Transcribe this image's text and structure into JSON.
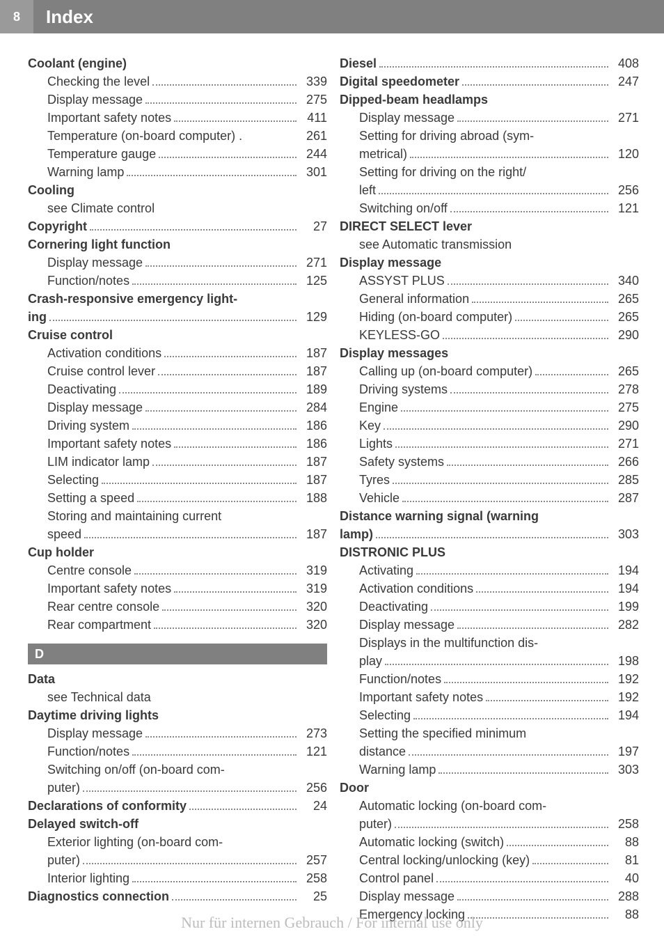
{
  "header": {
    "page_num": "8",
    "title": "Index"
  },
  "left": [
    {
      "t": "h",
      "text": "Coolant (engine)"
    },
    {
      "t": "i",
      "text": "Checking the level",
      "pg": "339"
    },
    {
      "t": "i",
      "text": "Display message",
      "pg": "275"
    },
    {
      "t": "i",
      "text": "Important safety notes",
      "pg": "411"
    },
    {
      "t": "i",
      "text": "Temperature (on-board computer) .",
      "pg": "261",
      "nodots": true
    },
    {
      "t": "i",
      "text": "Temperature gauge",
      "pg": "244"
    },
    {
      "t": "i",
      "text": "Warning lamp",
      "pg": "301"
    },
    {
      "t": "h",
      "text": "Cooling"
    },
    {
      "t": "p",
      "text": "see Climate control"
    },
    {
      "t": "b",
      "text": "Copyright",
      "pg": "27"
    },
    {
      "t": "h",
      "text": "Cornering light function"
    },
    {
      "t": "i",
      "text": "Display message",
      "pg": "271"
    },
    {
      "t": "i",
      "text": "Function/notes",
      "pg": "125"
    },
    {
      "t": "h",
      "text": "Crash-responsive emergency light-"
    },
    {
      "t": "b",
      "text": "ing",
      "pg": "129"
    },
    {
      "t": "h",
      "text": "Cruise control"
    },
    {
      "t": "i",
      "text": "Activation conditions",
      "pg": "187"
    },
    {
      "t": "i",
      "text": "Cruise control lever",
      "pg": "187"
    },
    {
      "t": "i",
      "text": "Deactivating",
      "pg": "189"
    },
    {
      "t": "i",
      "text": "Display message",
      "pg": "284"
    },
    {
      "t": "i",
      "text": "Driving system",
      "pg": "186"
    },
    {
      "t": "i",
      "text": "Important safety notes",
      "pg": "186"
    },
    {
      "t": "i",
      "text": "LIM indicator lamp",
      "pg": "187"
    },
    {
      "t": "i",
      "text": "Selecting",
      "pg": "187"
    },
    {
      "t": "i",
      "text": "Setting a speed",
      "pg": "188"
    },
    {
      "t": "p",
      "text": "Storing and maintaining current"
    },
    {
      "t": "i",
      "text": "speed",
      "pg": "187"
    },
    {
      "t": "h",
      "text": "Cup holder"
    },
    {
      "t": "i",
      "text": "Centre console",
      "pg": "319"
    },
    {
      "t": "i",
      "text": "Important safety notes",
      "pg": "319"
    },
    {
      "t": "i",
      "text": "Rear centre console",
      "pg": "320"
    },
    {
      "t": "i",
      "text": "Rear compartment",
      "pg": "320"
    },
    {
      "t": "letter",
      "text": "D"
    },
    {
      "t": "h",
      "text": "Data"
    },
    {
      "t": "p",
      "text": "see Technical data"
    },
    {
      "t": "h",
      "text": "Daytime driving lights"
    },
    {
      "t": "i",
      "text": "Display message",
      "pg": "273"
    },
    {
      "t": "i",
      "text": "Function/notes",
      "pg": "121"
    },
    {
      "t": "p",
      "text": "Switching on/off (on-board com-"
    },
    {
      "t": "i",
      "text": "puter)",
      "pg": "256"
    },
    {
      "t": "b",
      "text": "Declarations of conformity",
      "pg": "24"
    },
    {
      "t": "h",
      "text": "Delayed switch-off"
    },
    {
      "t": "p",
      "text": "Exterior lighting (on-board com-"
    },
    {
      "t": "i",
      "text": "puter)",
      "pg": "257"
    },
    {
      "t": "i",
      "text": "Interior lighting",
      "pg": "258"
    },
    {
      "t": "b",
      "text": "Diagnostics connection",
      "pg": "25"
    }
  ],
  "right": [
    {
      "t": "b",
      "text": "Diesel",
      "pg": "408"
    },
    {
      "t": "b",
      "text": "Digital speedometer",
      "pg": "247"
    },
    {
      "t": "h",
      "text": "Dipped-beam headlamps"
    },
    {
      "t": "i",
      "text": "Display message",
      "pg": "271"
    },
    {
      "t": "p",
      "text": "Setting for driving abroad (sym-"
    },
    {
      "t": "i",
      "text": "metrical)",
      "pg": "120"
    },
    {
      "t": "p",
      "text": "Setting for driving on the right/"
    },
    {
      "t": "i",
      "text": "left",
      "pg": "256"
    },
    {
      "t": "i",
      "text": "Switching on/off",
      "pg": "121"
    },
    {
      "t": "h",
      "text": "DIRECT SELECT lever"
    },
    {
      "t": "p",
      "text": "see Automatic transmission"
    },
    {
      "t": "h",
      "text": "Display message"
    },
    {
      "t": "i",
      "text": "ASSYST PLUS",
      "pg": "340"
    },
    {
      "t": "i",
      "text": "General information",
      "pg": "265"
    },
    {
      "t": "i",
      "text": "Hiding (on-board computer)",
      "pg": "265"
    },
    {
      "t": "i",
      "text": "KEYLESS-GO",
      "pg": "290"
    },
    {
      "t": "h",
      "text": "Display messages"
    },
    {
      "t": "i",
      "text": "Calling up (on-board computer)",
      "pg": "265"
    },
    {
      "t": "i",
      "text": "Driving systems",
      "pg": "278"
    },
    {
      "t": "i",
      "text": "Engine",
      "pg": "275"
    },
    {
      "t": "i",
      "text": "Key",
      "pg": "290"
    },
    {
      "t": "i",
      "text": "Lights",
      "pg": "271"
    },
    {
      "t": "i",
      "text": "Safety systems",
      "pg": "266"
    },
    {
      "t": "i",
      "text": "Tyres",
      "pg": "285"
    },
    {
      "t": "i",
      "text": "Vehicle",
      "pg": "287"
    },
    {
      "t": "h",
      "text": "Distance warning signal (warning"
    },
    {
      "t": "b",
      "text": "lamp)",
      "pg": "303"
    },
    {
      "t": "h",
      "text": "DISTRONIC PLUS"
    },
    {
      "t": "i",
      "text": "Activating",
      "pg": "194"
    },
    {
      "t": "i",
      "text": "Activation conditions",
      "pg": "194"
    },
    {
      "t": "i",
      "text": "Deactivating",
      "pg": "199"
    },
    {
      "t": "i",
      "text": "Display message",
      "pg": "282"
    },
    {
      "t": "p",
      "text": "Displays in the multifunction dis-"
    },
    {
      "t": "i",
      "text": "play",
      "pg": "198"
    },
    {
      "t": "i",
      "text": "Function/notes",
      "pg": "192"
    },
    {
      "t": "i",
      "text": "Important safety notes",
      "pg": "192"
    },
    {
      "t": "i",
      "text": "Selecting",
      "pg": "194"
    },
    {
      "t": "p",
      "text": "Setting the specified minimum"
    },
    {
      "t": "i",
      "text": "distance",
      "pg": "197"
    },
    {
      "t": "i",
      "text": "Warning lamp",
      "pg": "303"
    },
    {
      "t": "h",
      "text": "Door"
    },
    {
      "t": "p",
      "text": "Automatic locking (on-board com-"
    },
    {
      "t": "i",
      "text": "puter)",
      "pg": "258"
    },
    {
      "t": "i",
      "text": "Automatic locking (switch)",
      "pg": "88"
    },
    {
      "t": "i",
      "text": "Central locking/unlocking (key)",
      "pg": "81"
    },
    {
      "t": "i",
      "text": "Control panel",
      "pg": "40"
    },
    {
      "t": "i",
      "text": "Display message",
      "pg": "288"
    },
    {
      "t": "i",
      "text": "Emergency locking",
      "pg": "88"
    }
  ],
  "watermark": "Nur für internen Gebrauch / For internal use only"
}
